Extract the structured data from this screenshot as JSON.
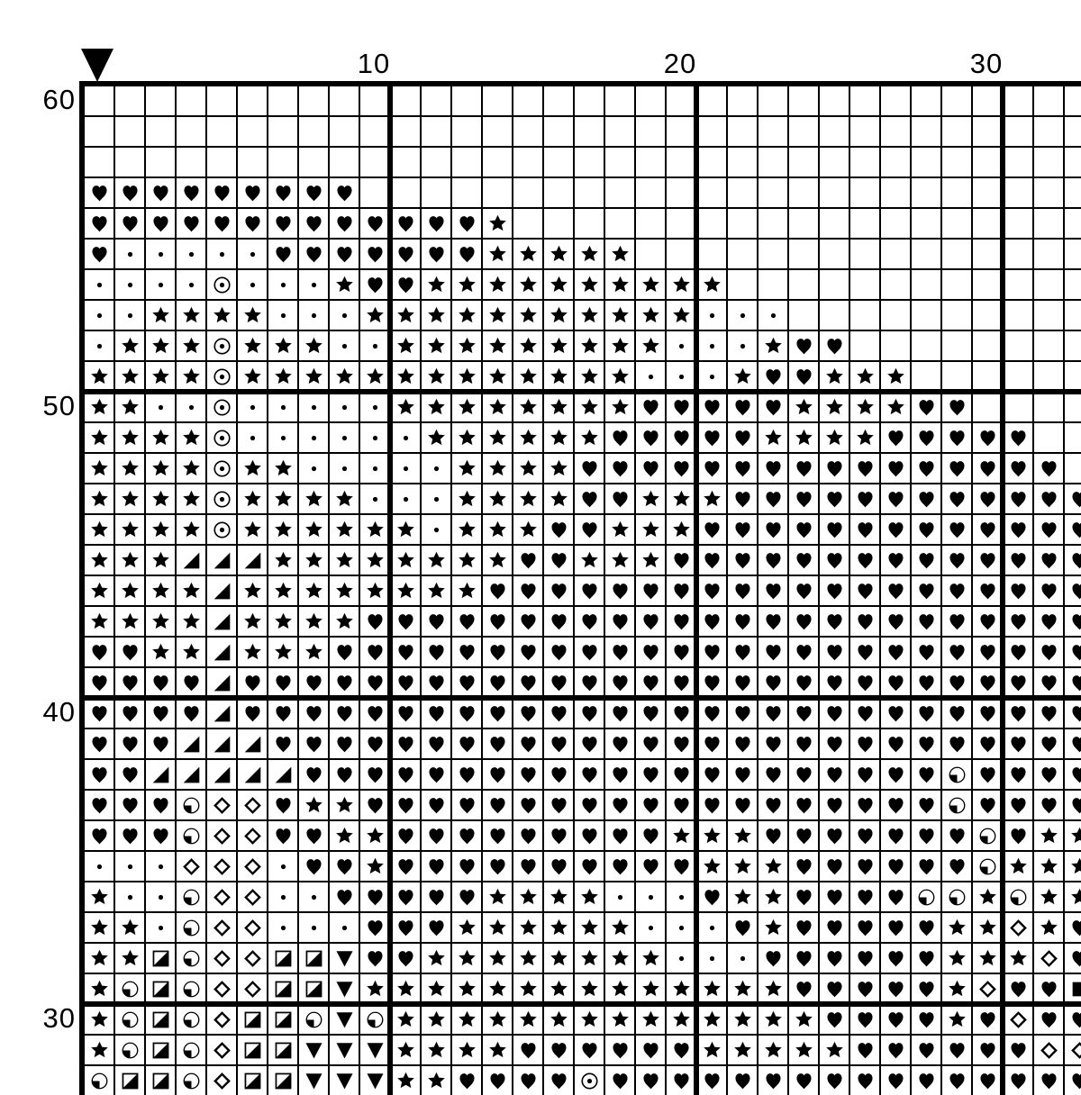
{
  "pattern": {
    "axis": {
      "top_labels": [
        "10",
        "20",
        "30"
      ],
      "left_labels": [
        "60",
        "50",
        "40",
        "30"
      ]
    },
    "marker": {
      "icon": "center-marker-down-triangle",
      "over_column": 1
    },
    "colors": {
      "line": "#000000",
      "background": "#ffffff",
      "symbol": "#000000"
    },
    "grid": {
      "visible_cols": 33,
      "visible_rows": 33,
      "major_line_every": 10,
      "symbol_legend": {
        ".": "empty",
        "h": "heart",
        "s": "star",
        "d": "dot",
        "o": "circled-dot",
        "t": "corner-triangle-lower-right",
        "q": "circle-quarter-lower-left",
        "D": "diamond-outline",
        "Q": "square-half-lower-right",
        "T": "triangle-down",
        "F": "solid-square"
      },
      "rows": [
        ".................................",
        ".................................",
        ".................................",
        "hhhhhhhhh........................",
        "hhhhhhhhhhhhhs...................",
        "hdddddhhhhhhhsssss...............",
        "ddddodddshhssssssssss............",
        "ddssssdddsssssssssssddd..........",
        "dsssosssddsssssssssdddshh........",
        "ssssosssssssssssssdddshhsss......",
        "ssddodddddsssssssshhhhhsssshh....",
        "ssssoddddddsssssshhhhhsssshhhhh..",
        "ssssossdddddsssshhhhhhhhhhhhhhhh.",
        "ssssossssdddsssshhssshhhhhhhhhhhh",
        "ssssossssssdssshhssshhhhhhhhhhhhh",
        "ssstttsssssssshhssshhhhhhhhhhhhhh",
        "sssstsssssssshhhhhhhhhhhhhhhhhhhh",
        "sssstsssshhhhhhhhhhhhhhhhhhhhhhhh",
        "hhsstssshhhhhhhhhhhhhhhhhhhhhhhhh",
        "hhhhthhhhhhhhhhhhhhhhhhhhhhhhhhhh",
        "hhhhthhhhhhhhhhhhhhhhhhhhhhhhhhhh",
        "hhhttthhhhhhhhhhhhhhhhhhhhhhhhhhh",
        "hhttttthhhhhhhhhhhhhhhhhhhhhqhhhh",
        "hhhqDDhsshhhhhhhhhhhhhhhhhhhqhhhh",
        "hhhqDDhhsshhhhhhhhhssshhhhhhhqhss",
        "dddDDDdhhshhhhhhhhhhssshhhhhhqsss",
        "sddqDDddhhhhhssssdddhsshhhhqqsqss",
        "ssdqDDdddhhhssssssdddhshhhhhssDsh",
        "ssQqDDQQThhssssssssdddhhhhhhsssDh",
        "sqQqDDQQTsssssssssssssshhhhhsDhhF",
        "sqQqDQQqTqsssssssssssssshhhhshDhh",
        "sqQqDQQTTTsssshhhhhhssssshhhhhhDD",
        "qQQqDQQTTTsshhhhohhhhhhhhhhhhhhhh"
      ]
    }
  }
}
